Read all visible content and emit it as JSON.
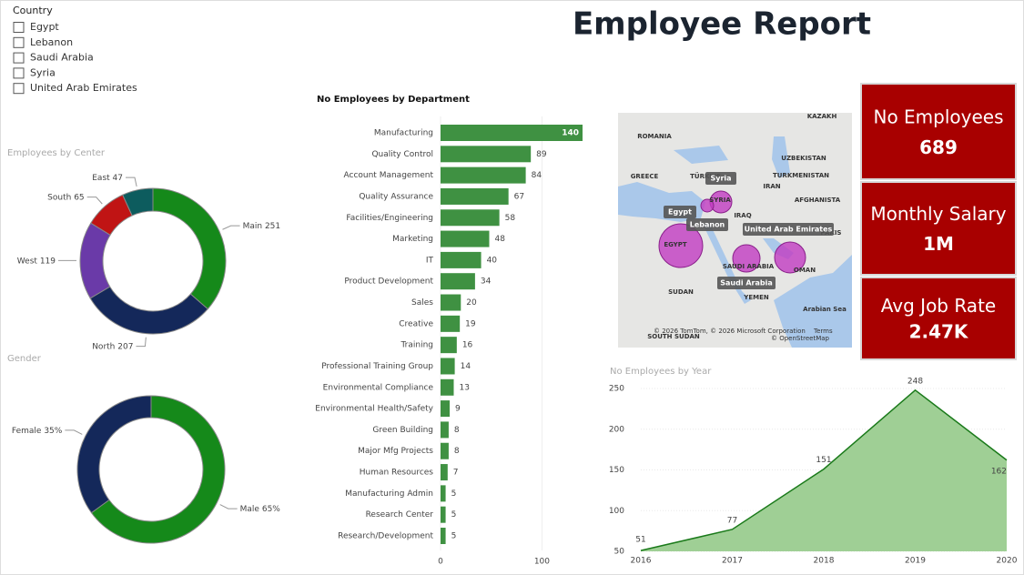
{
  "title": "Employee Report",
  "slicer": {
    "title": "Country",
    "items": [
      "Egypt",
      "Lebanon",
      "Saudi Arabia",
      "Syria",
      "United Arab Emirates"
    ]
  },
  "cards": [
    {
      "label": "No Employees",
      "value": "689"
    },
    {
      "label": "Monthly Salary",
      "value": "1M"
    },
    {
      "label": "Avg Job Rate",
      "value": "2.47K"
    }
  ],
  "map": {
    "labels": [
      "ROMANIA",
      "KAZAKH",
      "GREECE",
      "TÜRKIYE",
      "UZBEKISTAN",
      "TURKMENISTAN",
      "IRAQ",
      "IRAN",
      "AFGHANISTA",
      "SYRIA",
      "EGYPT",
      "SAUDI ARABIA",
      "OMAN",
      "PAKIS",
      "SUDAN",
      "YEMEN",
      "SOUTH SUDAN",
      "Arabian Sea"
    ],
    "tags": [
      "Syria",
      "Egypt",
      "Lebanon",
      "United Arab Emirates",
      "Saudi Arabia"
    ],
    "attribution": [
      "© 2026 TomTom, © 2026 Microsoft Corporation",
      "Terms",
      "© OpenStreetMap"
    ]
  },
  "chart_data": [
    {
      "type": "donut",
      "title": "Employees by Center",
      "categories": [
        "Main",
        "North",
        "West",
        "South",
        "East"
      ],
      "values": [
        251,
        207,
        119,
        65,
        47
      ],
      "colors": [
        "#15891a",
        "#14285a",
        "#6a3aa8",
        "#c01414",
        "#0d5c5e"
      ]
    },
    {
      "type": "donut",
      "title": "Gender",
      "categories": [
        "Male",
        "Female"
      ],
      "values": [
        65,
        35
      ],
      "value_labels": [
        "65%",
        "35%"
      ],
      "colors": [
        "#15891a",
        "#14285a"
      ]
    },
    {
      "type": "bar",
      "orientation": "horizontal",
      "title": "No Employees by Department",
      "categories": [
        "Manufacturing",
        "Quality Control",
        "Account Management",
        "Quality Assurance",
        "Facilities/Engineering",
        "Marketing",
        "IT",
        "Product Development",
        "Sales",
        "Creative",
        "Training",
        "Professional Training Group",
        "Environmental Compliance",
        "Environmental Health/Safety",
        "Green Building",
        "Major Mfg Projects",
        "Human Resources",
        "Manufacturing Admin",
        "Research Center",
        "Research/Development"
      ],
      "values": [
        140,
        89,
        84,
        67,
        58,
        48,
        40,
        34,
        20,
        19,
        16,
        14,
        13,
        9,
        8,
        8,
        7,
        5,
        5,
        5
      ],
      "color": "#3f9142",
      "xlim": [
        0,
        140
      ],
      "xticks": [
        0,
        100
      ],
      "grid": true
    },
    {
      "type": "area",
      "title": "No Employees by Year",
      "x": [
        2016,
        2017,
        2018,
        2019,
        2020
      ],
      "values": [
        51,
        77,
        151,
        248,
        162
      ],
      "xlim": [
        2016,
        2020
      ],
      "xticks": [
        2016,
        2017,
        2018,
        2019,
        2020
      ],
      "ylim": [
        50,
        250
      ],
      "yticks": [
        50,
        100,
        150,
        200,
        250
      ],
      "color": "#1a7a1a",
      "fill": "#9fcf95",
      "grid": true
    }
  ]
}
